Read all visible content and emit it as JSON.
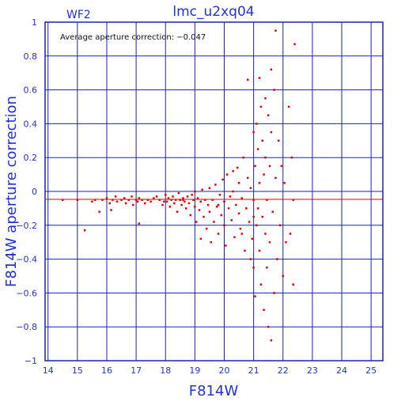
{
  "colors": {
    "axis": "#1a22b4",
    "grid": "#1a22b4",
    "text": "#2233cc",
    "data": "#e60000",
    "ref_line": "#e60000"
  },
  "chart_data": {
    "type": "scatter",
    "title": "lmc_u2xq04",
    "panel_label": "WF2",
    "annotation": "Average aperture correction: −0.047",
    "xlabel": "F814W",
    "ylabel": "F814W aperture correction",
    "xlim": [
      13.9,
      25.4
    ],
    "ylim": [
      -1,
      1
    ],
    "x_ticks": [
      14,
      15,
      16,
      17,
      18,
      19,
      20,
      21,
      22,
      23,
      24,
      25
    ],
    "y_ticks": [
      -1,
      -0.8,
      -0.6,
      -0.4,
      -0.2,
      0,
      0.2,
      0.4,
      0.6,
      0.8,
      1
    ],
    "y_tick_labels": [
      "−1",
      "−0.8",
      "−0.6",
      "−0.4",
      "−0.2",
      "0",
      "0.2",
      "0.4",
      "0.6",
      "0.8",
      "1"
    ],
    "grid": true,
    "reference_line": {
      "y": -0.047
    },
    "series": [
      {
        "marker": "square",
        "points": [
          [
            14.5,
            -0.05
          ],
          [
            15.0,
            -0.05
          ],
          [
            15.25,
            -0.23
          ],
          [
            15.5,
            -0.06
          ],
          [
            15.6,
            -0.05
          ],
          [
            15.75,
            -0.12
          ],
          [
            15.85,
            -0.05
          ],
          [
            16.0,
            -0.04
          ],
          [
            16.1,
            -0.07
          ],
          [
            16.15,
            -0.11
          ],
          [
            16.2,
            -0.05
          ],
          [
            16.3,
            -0.03
          ],
          [
            16.35,
            -0.06
          ],
          [
            16.5,
            -0.05
          ],
          [
            16.6,
            -0.04
          ],
          [
            16.65,
            -0.07
          ],
          [
            16.75,
            -0.05
          ],
          [
            16.85,
            -0.03
          ],
          [
            16.9,
            -0.08
          ],
          [
            17.0,
            -0.05
          ],
          [
            17.05,
            -0.06
          ],
          [
            17.1,
            -0.04
          ],
          [
            17.1,
            -0.19
          ],
          [
            17.2,
            -0.05
          ],
          [
            17.3,
            -0.07
          ],
          [
            17.4,
            -0.05
          ],
          [
            17.5,
            -0.06
          ],
          [
            17.6,
            -0.04
          ],
          [
            17.7,
            -0.03
          ],
          [
            17.8,
            -0.05
          ],
          [
            17.9,
            -0.08
          ],
          [
            17.95,
            -0.06
          ],
          [
            18.0,
            -0.02
          ],
          [
            18.05,
            -0.06
          ],
          [
            18.1,
            -0.04
          ],
          [
            18.15,
            -0.09
          ],
          [
            18.2,
            -0.05
          ],
          [
            18.25,
            -0.03
          ],
          [
            18.3,
            -0.07
          ],
          [
            18.35,
            -0.05
          ],
          [
            18.4,
            -0.12
          ],
          [
            18.45,
            -0.01
          ],
          [
            18.5,
            -0.05
          ],
          [
            18.55,
            -0.08
          ],
          [
            18.6,
            -0.04
          ],
          [
            18.65,
            -0.06
          ],
          [
            18.7,
            -0.1
          ],
          [
            18.75,
            -0.03
          ],
          [
            18.8,
            -0.07
          ],
          [
            18.85,
            -0.14
          ],
          [
            18.9,
            -0.02
          ],
          [
            18.95,
            -0.05
          ],
          [
            19.0,
            -0.09
          ],
          [
            19.0,
            0.0
          ],
          [
            19.05,
            -0.18
          ],
          [
            19.1,
            -0.04
          ],
          [
            19.15,
            -0.11
          ],
          [
            19.2,
            -0.06
          ],
          [
            19.25,
            0.01
          ],
          [
            19.3,
            -0.15
          ],
          [
            19.35,
            -0.05
          ],
          [
            19.4,
            -0.22
          ],
          [
            19.45,
            -0.08
          ],
          [
            19.5,
            0.02
          ],
          [
            19.5,
            -0.12
          ],
          [
            19.55,
            -0.3
          ],
          [
            19.6,
            -0.05
          ],
          [
            19.65,
            -0.18
          ],
          [
            19.7,
            0.04
          ],
          [
            19.75,
            -0.09
          ],
          [
            19.8,
            -0.25
          ],
          [
            19.85,
            -0.02
          ],
          [
            19.9,
            -0.14
          ],
          [
            19.95,
            0.07
          ],
          [
            20.0,
            -0.06
          ],
          [
            20.0,
            -0.2
          ],
          [
            20.05,
            -0.32
          ],
          [
            20.1,
            0.1
          ],
          [
            20.15,
            -0.1
          ],
          [
            20.2,
            -0.03
          ],
          [
            20.25,
            -0.17
          ],
          [
            20.3,
            0.0
          ],
          [
            20.35,
            -0.27
          ],
          [
            20.4,
            -0.08
          ],
          [
            20.45,
            0.14
          ],
          [
            20.5,
            -0.13
          ],
          [
            20.5,
            0.05
          ],
          [
            20.55,
            -0.22
          ],
          [
            20.6,
            -0.04
          ],
          [
            20.65,
            0.2
          ],
          [
            20.7,
            -0.35
          ],
          [
            20.75,
            -0.1
          ],
          [
            20.8,
            0.08
          ],
          [
            20.85,
            -0.18
          ],
          [
            20.9,
            0.02
          ],
          [
            20.95,
            -0.28
          ],
          [
            21.0,
            0.35
          ],
          [
            21.0,
            -0.05
          ],
          [
            21.0,
            -0.45
          ],
          [
            21.05,
            0.15
          ],
          [
            21.05,
            -0.62
          ],
          [
            21.1,
            -0.2
          ],
          [
            21.1,
            0.4
          ],
          [
            21.15,
            -0.1
          ],
          [
            21.15,
            0.25
          ],
          [
            21.2,
            -0.35
          ],
          [
            21.2,
            0.05
          ],
          [
            21.25,
            -0.55
          ],
          [
            21.25,
            0.5
          ],
          [
            21.3,
            -0.15
          ],
          [
            21.3,
            0.3
          ],
          [
            21.35,
            -0.7
          ],
          [
            21.35,
            0.1
          ],
          [
            21.4,
            -0.25
          ],
          [
            21.4,
            0.2
          ],
          [
            21.45,
            -0.45
          ],
          [
            21.45,
            -0.05
          ],
          [
            21.5,
            0.45
          ],
          [
            21.5,
            -0.8
          ],
          [
            21.55,
            0.15
          ],
          [
            21.55,
            -0.3
          ],
          [
            21.6,
            -0.88
          ],
          [
            21.6,
            0.35
          ],
          [
            21.65,
            -0.12
          ],
          [
            21.7,
            0.6
          ],
          [
            21.7,
            -0.6
          ],
          [
            21.75,
            0.95
          ],
          [
            21.75,
            0.08
          ],
          [
            21.8,
            -0.4
          ],
          [
            21.85,
            0.3
          ],
          [
            21.9,
            -0.2
          ],
          [
            21.95,
            0.15
          ],
          [
            22.0,
            -0.5
          ],
          [
            22.05,
            0.05
          ],
          [
            22.1,
            -0.3
          ],
          [
            22.2,
            0.5
          ],
          [
            22.25,
            -0.25
          ],
          [
            22.3,
            0.2
          ],
          [
            22.35,
            -0.55
          ],
          [
            22.4,
            0.87
          ],
          [
            20.8,
            0.66
          ],
          [
            21.2,
            0.67
          ],
          [
            22.35,
            -0.05
          ],
          [
            21.0,
            -0.15
          ],
          [
            20.6,
            -0.25
          ],
          [
            19.8,
            -0.08
          ],
          [
            18.6,
            -0.05
          ],
          [
            20.3,
            0.12
          ],
          [
            21.4,
            0.55
          ],
          [
            21.6,
            0.72
          ],
          [
            19.2,
            -0.28
          ],
          [
            20.9,
            -0.4
          ]
        ]
      }
    ]
  }
}
